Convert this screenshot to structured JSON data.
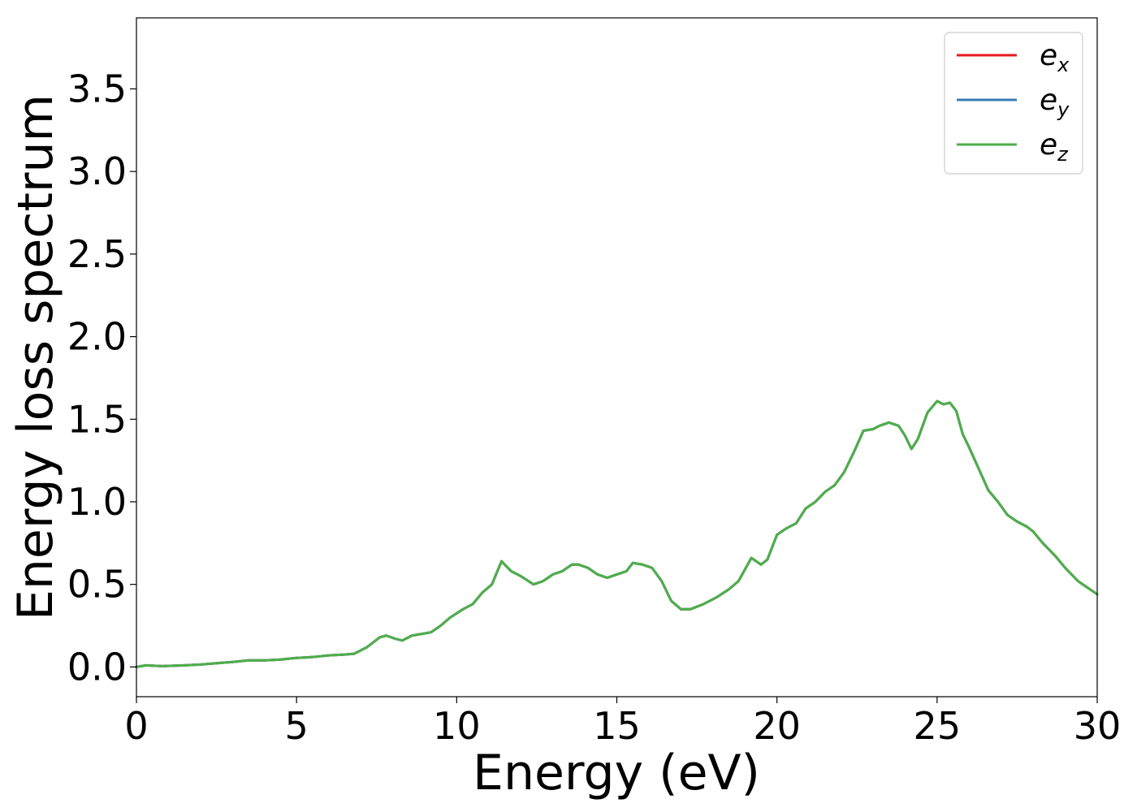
{
  "chart_data": {
    "type": "line",
    "title": "",
    "xlabel": "Energy (eV)",
    "ylabel": "Energy loss spectrum",
    "xlim": [
      0,
      30
    ],
    "ylim": [
      -0.18,
      3.93
    ],
    "xticks": [
      0,
      5,
      10,
      15,
      20,
      25,
      30
    ],
    "xtick_labels": [
      "0",
      "5",
      "10",
      "15",
      "20",
      "25",
      "30"
    ],
    "yticks": [
      0.0,
      0.5,
      1.0,
      1.5,
      2.0,
      2.5,
      3.0,
      3.5
    ],
    "ytick_labels": [
      "0.0",
      "0.5",
      "1.0",
      "1.5",
      "2.0",
      "2.5",
      "3.0",
      "3.5"
    ],
    "grid": false,
    "legend_position": "top-right",
    "colors": {
      "e_x": "#e41a1c",
      "e_y": "#377eb8",
      "e_z": "#4daf4a"
    },
    "x": [
      0,
      0.3,
      0.8,
      1.5,
      2.0,
      3.0,
      3.5,
      4.0,
      4.5,
      5.0,
      5.5,
      6.0,
      6.5,
      6.8,
      7.2,
      7.6,
      7.8,
      8.1,
      8.3,
      8.6,
      8.9,
      9.2,
      9.5,
      9.8,
      10.2,
      10.5,
      10.8,
      11.1,
      11.4,
      11.7,
      12.0,
      12.4,
      12.7,
      13.0,
      13.3,
      13.6,
      13.8,
      14.1,
      14.4,
      14.7,
      15.0,
      15.3,
      15.5,
      15.8,
      16.1,
      16.4,
      16.7,
      17.0,
      17.3,
      17.7,
      18.1,
      18.5,
      18.8,
      19.2,
      19.5,
      19.7,
      20.0,
      20.3,
      20.6,
      20.9,
      21.2,
      21.5,
      21.8,
      22.1,
      22.4,
      22.7,
      23.0,
      23.2,
      23.5,
      23.8,
      24.0,
      24.2,
      24.4,
      24.7,
      25.0,
      25.2,
      25.4,
      25.6,
      25.8,
      26.0,
      26.3,
      26.6,
      26.9,
      27.2,
      27.5,
      27.8,
      28.0,
      28.3,
      28.7,
      29.0,
      29.4,
      29.7,
      30.0
    ],
    "series": [
      {
        "name": "e_x",
        "values": [
          0.0,
          0.01,
          0.005,
          0.01,
          0.015,
          0.03,
          0.04,
          0.04,
          0.045,
          0.055,
          0.06,
          0.07,
          0.075,
          0.08,
          0.12,
          0.18,
          0.19,
          0.17,
          0.16,
          0.19,
          0.2,
          0.21,
          0.25,
          0.3,
          0.35,
          0.38,
          0.45,
          0.5,
          0.64,
          0.58,
          0.55,
          0.5,
          0.52,
          0.56,
          0.58,
          0.62,
          0.62,
          0.6,
          0.56,
          0.54,
          0.56,
          0.58,
          0.63,
          0.62,
          0.6,
          0.52,
          0.4,
          0.35,
          0.35,
          0.38,
          0.42,
          0.47,
          0.52,
          0.66,
          0.62,
          0.65,
          0.8,
          0.84,
          0.87,
          0.96,
          1.0,
          1.06,
          1.1,
          1.18,
          1.3,
          1.43,
          1.44,
          1.46,
          1.48,
          1.46,
          1.4,
          1.32,
          1.38,
          1.54,
          1.61,
          1.59,
          1.6,
          1.55,
          1.41,
          1.33,
          1.2,
          1.07,
          1.0,
          0.92,
          0.88,
          0.85,
          0.82,
          0.75,
          0.67,
          0.6,
          0.52,
          0.48,
          0.44
        ]
      },
      {
        "name": "e_y",
        "values": [
          0.0,
          0.01,
          0.005,
          0.01,
          0.015,
          0.03,
          0.04,
          0.04,
          0.045,
          0.055,
          0.06,
          0.07,
          0.075,
          0.08,
          0.12,
          0.18,
          0.19,
          0.17,
          0.16,
          0.19,
          0.2,
          0.21,
          0.25,
          0.3,
          0.35,
          0.38,
          0.45,
          0.5,
          0.64,
          0.58,
          0.55,
          0.5,
          0.52,
          0.56,
          0.58,
          0.62,
          0.62,
          0.6,
          0.56,
          0.54,
          0.56,
          0.58,
          0.63,
          0.62,
          0.6,
          0.52,
          0.4,
          0.35,
          0.35,
          0.38,
          0.42,
          0.47,
          0.52,
          0.66,
          0.62,
          0.65,
          0.8,
          0.84,
          0.87,
          0.96,
          1.0,
          1.06,
          1.1,
          1.18,
          1.3,
          1.43,
          1.44,
          1.46,
          1.48,
          1.46,
          1.4,
          1.32,
          1.38,
          1.54,
          1.61,
          1.59,
          1.6,
          1.55,
          1.41,
          1.33,
          1.2,
          1.07,
          1.0,
          0.92,
          0.88,
          0.85,
          0.82,
          0.75,
          0.67,
          0.6,
          0.52,
          0.48,
          0.44
        ]
      },
      {
        "name": "e_z",
        "values": [
          0.0,
          0.01,
          0.005,
          0.01,
          0.015,
          0.03,
          0.04,
          0.04,
          0.045,
          0.055,
          0.06,
          0.07,
          0.075,
          0.08,
          0.12,
          0.18,
          0.19,
          0.17,
          0.16,
          0.19,
          0.2,
          0.21,
          0.25,
          0.3,
          0.35,
          0.38,
          0.45,
          0.5,
          0.64,
          0.58,
          0.55,
          0.5,
          0.52,
          0.56,
          0.58,
          0.62,
          0.62,
          0.6,
          0.56,
          0.54,
          0.56,
          0.58,
          0.63,
          0.62,
          0.6,
          0.52,
          0.4,
          0.35,
          0.35,
          0.38,
          0.42,
          0.47,
          0.52,
          0.66,
          0.62,
          0.65,
          0.8,
          0.84,
          0.87,
          0.96,
          1.0,
          1.06,
          1.1,
          1.18,
          1.3,
          1.43,
          1.44,
          1.46,
          1.48,
          1.46,
          1.4,
          1.32,
          1.38,
          1.54,
          1.61,
          1.59,
          1.6,
          1.55,
          1.41,
          1.33,
          1.2,
          1.07,
          1.0,
          0.92,
          0.88,
          0.85,
          0.82,
          0.75,
          0.67,
          0.6,
          0.52,
          0.48,
          0.44
        ]
      }
    ],
    "legend": [
      {
        "base": "e",
        "sub": "x",
        "series": "e_x"
      },
      {
        "base": "e",
        "sub": "y",
        "series": "e_y"
      },
      {
        "base": "e",
        "sub": "z",
        "series": "e_z"
      }
    ]
  }
}
